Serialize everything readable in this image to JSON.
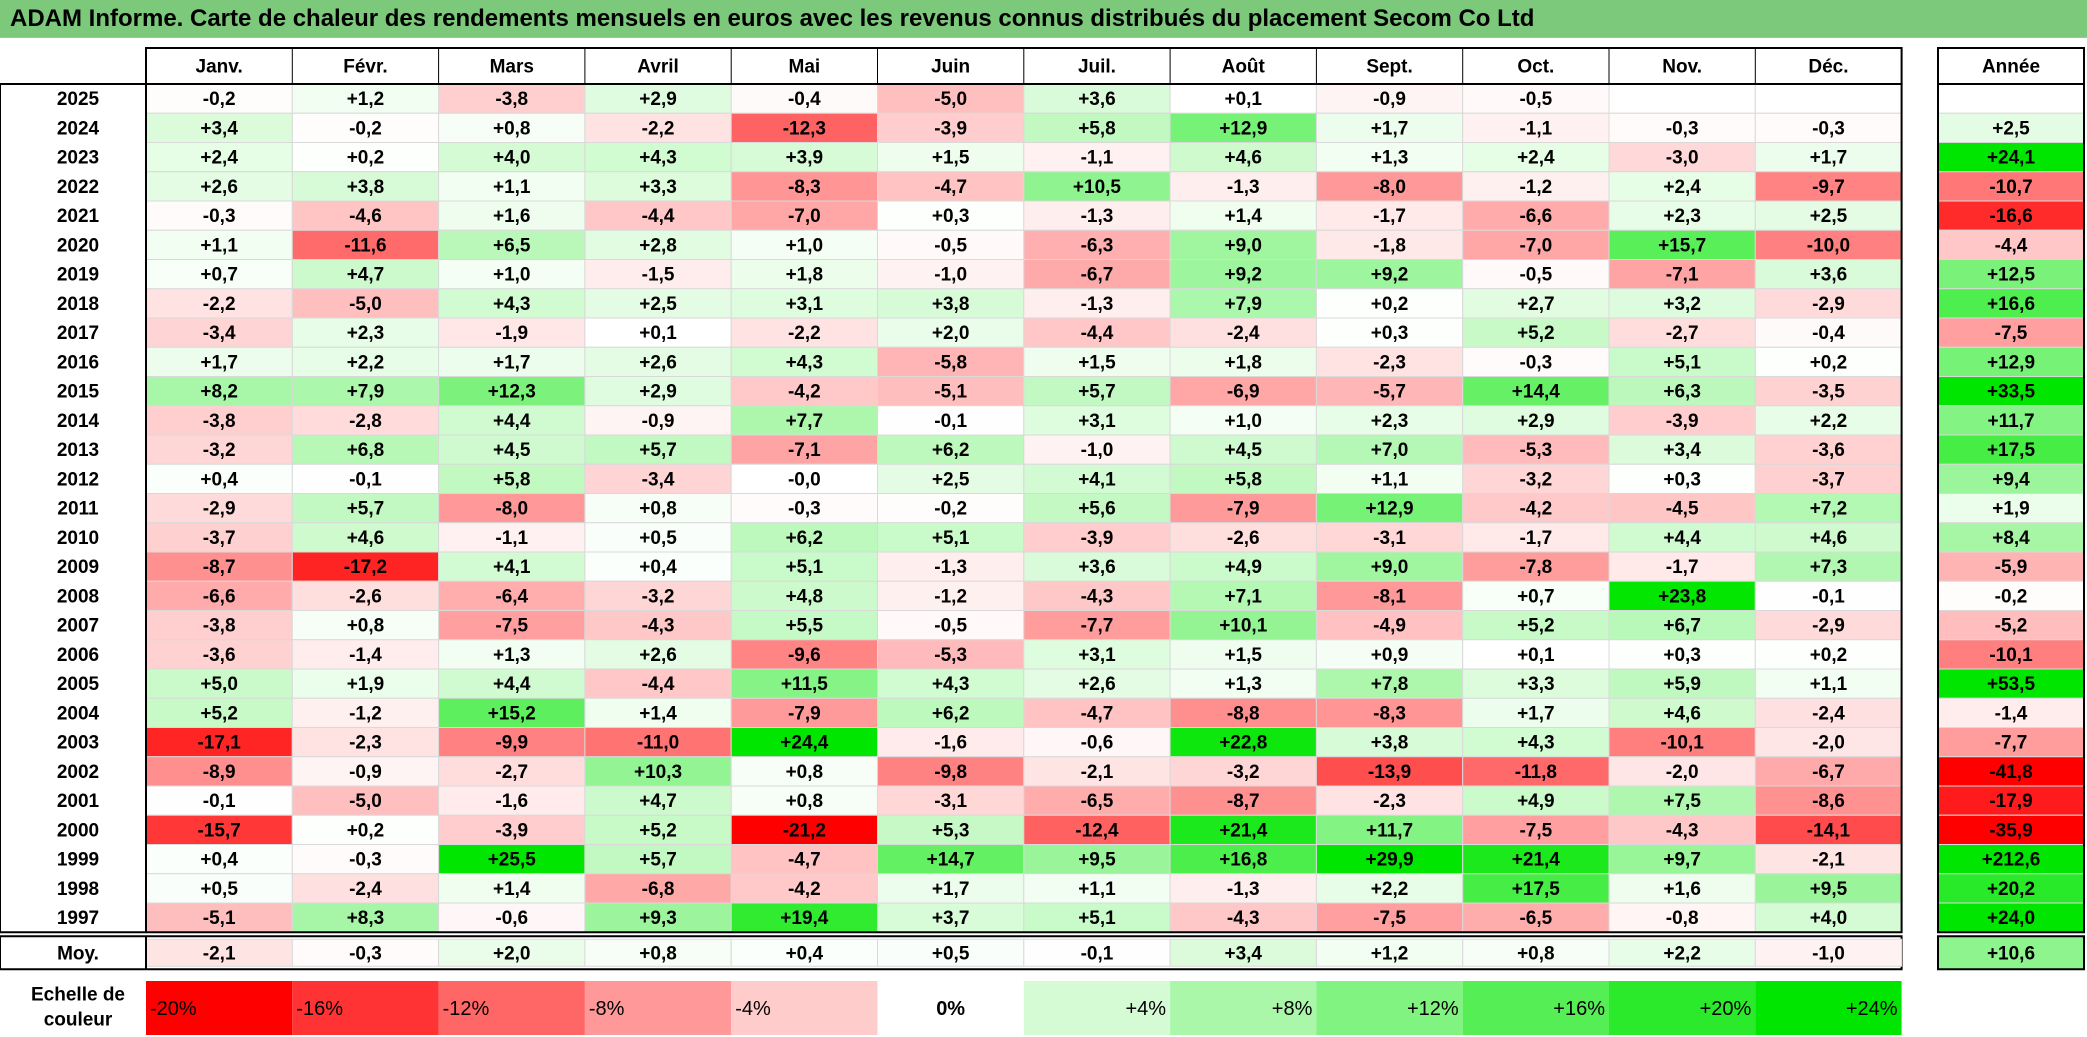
{
  "title": "ADAM Informe. Carte de chaleur des rendements mensuels en euros avec les revenus connus distribués du placement Secom Co Ltd",
  "chart_data": {
    "type": "heatmap",
    "title": "ADAM Informe. Carte de chaleur des rendements mensuels en euros avec les revenus connus distribués du placement Secom Co Ltd",
    "months": [
      "Janv.",
      "Févr.",
      "Mars",
      "Avril",
      "Mai",
      "Juin",
      "Juil.",
      "Août",
      "Sept.",
      "Oct.",
      "Nov.",
      "Déc."
    ],
    "year_column_label": "Année",
    "rows": [
      {
        "year": "2025",
        "values": [
          "-0,2",
          "+1,2",
          "-3,8",
          "+2,9",
          "-0,4",
          "-5,0",
          "+3,6",
          "+0,1",
          "-0,9",
          "-0,5",
          "",
          ""
        ],
        "annual": ""
      },
      {
        "year": "2024",
        "values": [
          "+3,4",
          "-0,2",
          "+0,8",
          "-2,2",
          "-12,3",
          "-3,9",
          "+5,8",
          "+12,9",
          "+1,7",
          "-1,1",
          "-0,3",
          "-0,3"
        ],
        "annual": "+2,5"
      },
      {
        "year": "2023",
        "values": [
          "+2,4",
          "+0,2",
          "+4,0",
          "+4,3",
          "+3,9",
          "+1,5",
          "-1,1",
          "+4,6",
          "+1,3",
          "+2,4",
          "-3,0",
          "+1,7"
        ],
        "annual": "+24,1"
      },
      {
        "year": "2022",
        "values": [
          "+2,6",
          "+3,8",
          "+1,1",
          "+3,3",
          "-8,3",
          "-4,7",
          "+10,5",
          "-1,3",
          "-8,0",
          "-1,2",
          "+2,4",
          "-9,7"
        ],
        "annual": "-10,7"
      },
      {
        "year": "2021",
        "values": [
          "-0,3",
          "-4,6",
          "+1,6",
          "-4,4",
          "-7,0",
          "+0,3",
          "-1,3",
          "+1,4",
          "-1,7",
          "-6,6",
          "+2,3",
          "+2,5"
        ],
        "annual": "-16,6"
      },
      {
        "year": "2020",
        "values": [
          "+1,1",
          "-11,6",
          "+6,5",
          "+2,8",
          "+1,0",
          "-0,5",
          "-6,3",
          "+9,0",
          "-1,8",
          "-7,0",
          "+15,7",
          "-10,0"
        ],
        "annual": "-4,4"
      },
      {
        "year": "2019",
        "values": [
          "+0,7",
          "+4,7",
          "+1,0",
          "-1,5",
          "+1,8",
          "-1,0",
          "-6,7",
          "+9,2",
          "+9,2",
          "-0,5",
          "-7,1",
          "+3,6"
        ],
        "annual": "+12,5"
      },
      {
        "year": "2018",
        "values": [
          "-2,2",
          "-5,0",
          "+4,3",
          "+2,5",
          "+3,1",
          "+3,8",
          "-1,3",
          "+7,9",
          "+0,2",
          "+2,7",
          "+3,2",
          "-2,9"
        ],
        "annual": "+16,6"
      },
      {
        "year": "2017",
        "values": [
          "-3,4",
          "+2,3",
          "-1,9",
          "+0,1",
          "-2,2",
          "+2,0",
          "-4,4",
          "-2,4",
          "+0,3",
          "+5,2",
          "-2,7",
          "-0,4"
        ],
        "annual": "-7,5"
      },
      {
        "year": "2016",
        "values": [
          "+1,7",
          "+2,2",
          "+1,7",
          "+2,6",
          "+4,3",
          "-5,8",
          "+1,5",
          "+1,8",
          "-2,3",
          "-0,3",
          "+5,1",
          "+0,2"
        ],
        "annual": "+12,9"
      },
      {
        "year": "2015",
        "values": [
          "+8,2",
          "+7,9",
          "+12,3",
          "+2,9",
          "-4,2",
          "-5,1",
          "+5,7",
          "-6,9",
          "-5,7",
          "+14,4",
          "+6,3",
          "-3,5"
        ],
        "annual": "+33,5"
      },
      {
        "year": "2014",
        "values": [
          "-3,8",
          "-2,8",
          "+4,4",
          "-0,9",
          "+7,7",
          "-0,1",
          "+3,1",
          "+1,0",
          "+2,3",
          "+2,9",
          "-3,9",
          "+2,2"
        ],
        "annual": "+11,7"
      },
      {
        "year": "2013",
        "values": [
          "-3,2",
          "+6,8",
          "+4,5",
          "+5,7",
          "-7,1",
          "+6,2",
          "-1,0",
          "+4,5",
          "+7,0",
          "-5,3",
          "+3,4",
          "-3,6"
        ],
        "annual": "+17,5"
      },
      {
        "year": "2012",
        "values": [
          "+0,4",
          "-0,1",
          "+5,8",
          "-3,4",
          "-0,0",
          "+2,5",
          "+4,1",
          "+5,8",
          "+1,1",
          "-3,2",
          "+0,3",
          "-3,7"
        ],
        "annual": "+9,4"
      },
      {
        "year": "2011",
        "values": [
          "-2,9",
          "+5,7",
          "-8,0",
          "+0,8",
          "-0,3",
          "-0,2",
          "+5,6",
          "-7,9",
          "+12,9",
          "-4,2",
          "-4,5",
          "+7,2"
        ],
        "annual": "+1,9"
      },
      {
        "year": "2010",
        "values": [
          "-3,7",
          "+4,6",
          "-1,1",
          "+0,5",
          "+6,2",
          "+5,1",
          "-3,9",
          "-2,6",
          "-3,1",
          "-1,7",
          "+4,4",
          "+4,6"
        ],
        "annual": "+8,4"
      },
      {
        "year": "2009",
        "values": [
          "-8,7",
          "-17,2",
          "+4,1",
          "+0,4",
          "+5,1",
          "-1,3",
          "+3,6",
          "+4,9",
          "+9,0",
          "-7,8",
          "-1,7",
          "+7,3"
        ],
        "annual": "-5,9"
      },
      {
        "year": "2008",
        "values": [
          "-6,6",
          "-2,6",
          "-6,4",
          "-3,2",
          "+4,8",
          "-1,2",
          "-4,3",
          "+7,1",
          "-8,1",
          "+0,7",
          "+23,8",
          "-0,1"
        ],
        "annual": "-0,2"
      },
      {
        "year": "2007",
        "values": [
          "-3,8",
          "+0,8",
          "-7,5",
          "-4,3",
          "+5,5",
          "-0,5",
          "-7,7",
          "+10,1",
          "-4,9",
          "+5,2",
          "+6,7",
          "-2,9"
        ],
        "annual": "-5,2"
      },
      {
        "year": "2006",
        "values": [
          "-3,6",
          "-1,4",
          "+1,3",
          "+2,6",
          "-9,6",
          "-5,3",
          "+3,1",
          "+1,5",
          "+0,9",
          "+0,1",
          "+0,3",
          "+0,2"
        ],
        "annual": "-10,1"
      },
      {
        "year": "2005",
        "values": [
          "+5,0",
          "+1,9",
          "+4,4",
          "-4,4",
          "+11,5",
          "+4,3",
          "+2,6",
          "+1,3",
          "+7,8",
          "+3,3",
          "+5,9",
          "+1,1"
        ],
        "annual": "+53,5"
      },
      {
        "year": "2004",
        "values": [
          "+5,2",
          "-1,2",
          "+15,2",
          "+1,4",
          "-7,9",
          "+6,2",
          "-4,7",
          "-8,8",
          "-8,3",
          "+1,7",
          "+4,6",
          "-2,4"
        ],
        "annual": "-1,4"
      },
      {
        "year": "2003",
        "values": [
          "-17,1",
          "-2,3",
          "-9,9",
          "-11,0",
          "+24,4",
          "-1,6",
          "-0,6",
          "+22,8",
          "+3,8",
          "+4,3",
          "-10,1",
          "-2,0"
        ],
        "annual": "-7,7"
      },
      {
        "year": "2002",
        "values": [
          "-8,9",
          "-0,9",
          "-2,7",
          "+10,3",
          "+0,8",
          "-9,8",
          "-2,1",
          "-3,2",
          "-13,9",
          "-11,8",
          "-2,0",
          "-6,7"
        ],
        "annual": "-41,8"
      },
      {
        "year": "2001",
        "values": [
          "-0,1",
          "-5,0",
          "-1,6",
          "+4,7",
          "+0,8",
          "-3,1",
          "-6,5",
          "-8,7",
          "-2,3",
          "+4,9",
          "+7,5",
          "-8,6"
        ],
        "annual": "-17,9"
      },
      {
        "year": "2000",
        "values": [
          "-15,7",
          "+0,2",
          "-3,9",
          "+5,2",
          "-21,2",
          "+5,3",
          "-12,4",
          "+21,4",
          "+11,7",
          "-7,5",
          "-4,3",
          "-14,1"
        ],
        "annual": "-35,9"
      },
      {
        "year": "1999",
        "values": [
          "+0,4",
          "-0,3",
          "+25,5",
          "+5,7",
          "-4,7",
          "+14,7",
          "+9,5",
          "+16,8",
          "+29,9",
          "+21,4",
          "+9,7",
          "-2,1"
        ],
        "annual": "+212,6"
      },
      {
        "year": "1998",
        "values": [
          "+0,5",
          "-2,4",
          "+1,4",
          "-6,8",
          "-4,2",
          "+1,7",
          "+1,1",
          "-1,3",
          "+2,2",
          "+17,5",
          "+1,6",
          "+9,5"
        ],
        "annual": "+20,2"
      },
      {
        "year": "1997",
        "values": [
          "-5,1",
          "+8,3",
          "-0,6",
          "+9,3",
          "+19,4",
          "+3,7",
          "+5,1",
          "-4,3",
          "-7,5",
          "-6,5",
          "-0,8",
          "+4,0"
        ],
        "annual": "+24,0"
      }
    ],
    "average": {
      "label": "Moy.",
      "values": [
        "-2,1",
        "-0,3",
        "+2,0",
        "+0,8",
        "+0,4",
        "+0,5",
        "-0,1",
        "+3,4",
        "+1,2",
        "+0,8",
        "+2,2",
        "-1,0"
      ],
      "annual": "+10,6"
    },
    "color_scale": {
      "label_line1": "Echelle de",
      "label_line2": "couleur",
      "steps": [
        "-20%",
        "-16%",
        "-12%",
        "-8%",
        "-4%",
        "0%",
        "+4%",
        "+8%",
        "+12%",
        "+16%",
        "+20%",
        "+24%"
      ],
      "values": [
        -20,
        -16,
        -12,
        -8,
        -4,
        0,
        4,
        8,
        12,
        16,
        20,
        24
      ]
    },
    "colors": {
      "negative_max": "#ff0000",
      "neutral": "#ffffff",
      "positive_max": "#00e600",
      "header_bar": "#7cc97c"
    }
  }
}
